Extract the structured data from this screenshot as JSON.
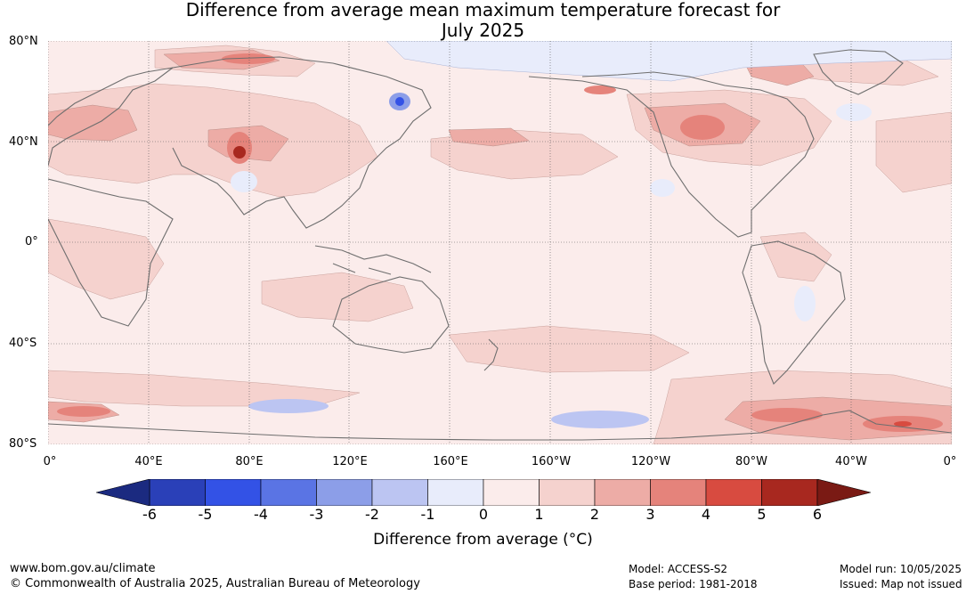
{
  "title_line1": "Difference from average mean maximum temperature forecast for",
  "title_line2": "July 2025",
  "lat_labels": [
    "80°N",
    "40°N",
    "0°",
    "40°S",
    "80°S"
  ],
  "lon_labels": [
    "0°",
    "40°E",
    "80°E",
    "120°E",
    "160°E",
    "160°W",
    "120°W",
    "80°W",
    "40°W",
    "0°"
  ],
  "colorbar": {
    "title": "Difference from average (°C)",
    "ticks": [
      "-6",
      "-5",
      "-4",
      "-3",
      "-2",
      "-1",
      "0",
      "1",
      "2",
      "3",
      "4",
      "5",
      "6"
    ],
    "colors": {
      "under": "#1b2a80",
      "bins": [
        "#2a40b8",
        "#3352e6",
        "#5a74e4",
        "#8c9ee8",
        "#bcc5f2",
        "#e8ecfb",
        "#fbeceb",
        "#f5d2ce",
        "#edaca6",
        "#e5837b",
        "#d84b40",
        "#a8281f"
      ],
      "over": "#7a1a14"
    }
  },
  "footer": {
    "website": "www.bom.gov.au/climate",
    "copyright": "© Commonwealth of Australia 2025, Australian Bureau of Meteorology",
    "model": "Model: ACCESS-S2",
    "base_period": "Base period: 1981-2018",
    "model_run": "Model run: 10/05/2025",
    "issued": "Issued: Map not issued"
  }
}
